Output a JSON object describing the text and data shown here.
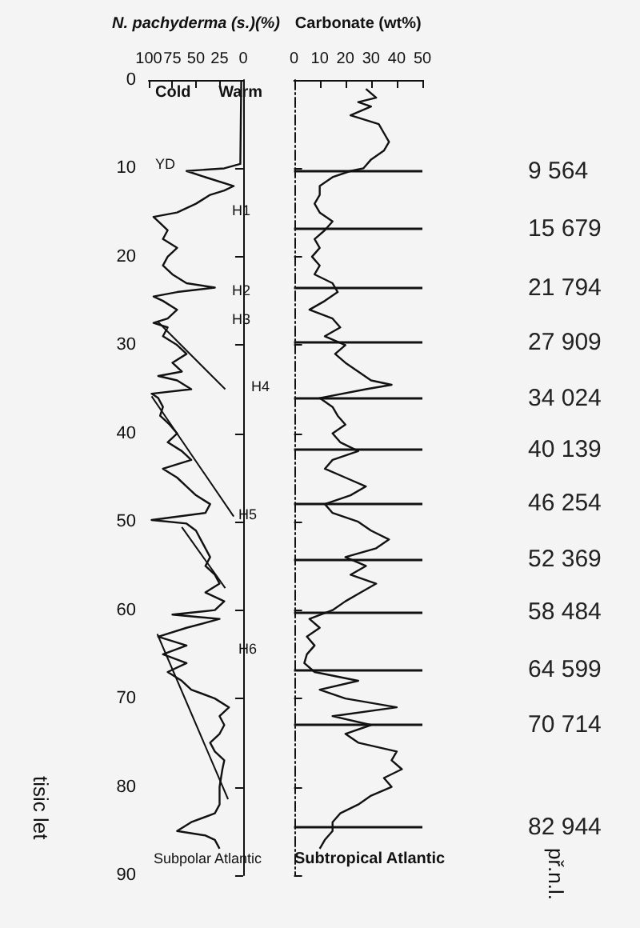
{
  "chart_data": [
    {
      "type": "line",
      "xlabel": "N. pachyderma (s.)(%)",
      "xlim": [
        100,
        0
      ],
      "xticks": [
        100,
        75,
        50,
        25,
        0
      ],
      "ylim": [
        90,
        0
      ],
      "yticks": [
        0,
        10,
        20,
        30,
        40,
        50,
        60,
        70,
        80,
        90
      ],
      "grid": false,
      "series": [
        {
          "color": "#111111",
          "x": [
            2,
            3,
            20,
            60,
            40,
            10,
            20,
            35,
            50,
            70,
            95,
            90,
            80,
            85,
            70,
            80,
            85,
            75,
            60,
            30,
            70,
            95,
            85,
            70,
            80,
            95,
            80,
            85,
            70,
            60,
            75,
            65,
            90,
            70,
            55,
            97,
            90,
            85,
            88,
            78,
            70,
            80,
            65,
            55,
            85,
            70,
            60,
            50,
            35,
            40,
            97,
            60,
            50,
            45,
            40,
            35,
            40,
            30,
            25,
            40,
            20,
            30,
            75,
            25,
            60,
            90,
            60,
            85,
            60,
            80,
            65,
            55,
            30,
            15,
            25,
            20,
            25,
            35,
            30,
            20,
            22,
            25,
            25,
            30,
            55,
            70,
            40,
            30,
            25
          ],
          "values": [
            0,
            9.5,
            10,
            10.3,
            11,
            12,
            12.5,
            13,
            14,
            15,
            15.5,
            16,
            17,
            18,
            19,
            20,
            21,
            22,
            23,
            23.5,
            24,
            24.5,
            25,
            26,
            27,
            27.5,
            28,
            29,
            30,
            31,
            32,
            33,
            33.5,
            34,
            35,
            35.5,
            36,
            37,
            38,
            39,
            40,
            41,
            42,
            43,
            44,
            45,
            46,
            47,
            48,
            49,
            49.8,
            50.2,
            51,
            52,
            53,
            54,
            55,
            56,
            57,
            58,
            59,
            60,
            60.5,
            61,
            62,
            63,
            64,
            65,
            66,
            67,
            68,
            69,
            70,
            71,
            72,
            73,
            74,
            75,
            76,
            77,
            78,
            80,
            82,
            83,
            84,
            85,
            85.5,
            86,
            87
          ]
        },
        {
          "color": "#111111",
          "x": [
            91,
            19,
            null,
            97,
            10,
            null,
            65,
            19,
            null,
            91,
            16
          ],
          "values": [
            27.3,
            35,
            null,
            35.8,
            49.4,
            null,
            50.6,
            57.5,
            null,
            62.7,
            81.4
          ]
        }
      ],
      "annotations": [
        "Cold",
        "Warm",
        "Subpolar Atlantic",
        "tisic let",
        "YD",
        "H1",
        "H2",
        "H3",
        "H4",
        "H5",
        "H6"
      ]
    },
    {
      "type": "line",
      "xlabel": "Carbonate (wt%)",
      "xlim": [
        0,
        50
      ],
      "xticks": [
        0,
        10,
        20,
        30,
        40,
        50
      ],
      "ylim": [
        90,
        0
      ],
      "yticks": [
        0,
        10,
        20,
        30,
        40,
        50,
        60,
        70,
        80,
        90
      ],
      "grid": false,
      "tick_labels": "x",
      "series": [
        {
          "color": "#111111",
          "x": [
            28,
            32,
            25,
            30,
            22,
            33,
            35,
            37,
            35,
            30,
            27,
            22,
            15,
            10,
            10,
            8,
            10,
            15,
            12,
            8,
            10,
            7,
            10,
            8,
            15,
            17,
            12,
            6,
            15,
            18,
            12,
            20,
            16,
            20,
            25,
            30,
            38,
            28,
            10,
            15,
            17,
            20,
            15,
            18,
            25,
            15,
            12,
            20,
            28,
            22,
            12,
            15,
            25,
            30,
            37,
            32,
            20,
            28,
            22,
            32,
            26,
            20,
            15,
            6,
            10,
            5,
            8,
            5,
            4,
            8,
            25,
            10,
            20,
            40,
            15,
            30,
            20,
            25,
            40,
            38,
            42,
            35,
            38,
            30,
            25,
            18,
            15,
            15,
            12,
            10
          ],
          "values": [
            1,
            2,
            2.5,
            3,
            4,
            5,
            6,
            7,
            8,
            9,
            10,
            10.3,
            11,
            12,
            13,
            14,
            15,
            16,
            17,
            18,
            19,
            20,
            21,
            22,
            23,
            24,
            25,
            26,
            27,
            28,
            29,
            30,
            31,
            32,
            33,
            34,
            34.5,
            35,
            36,
            37,
            38,
            39,
            40,
            41,
            42,
            43,
            44,
            45,
            46,
            47,
            48,
            49,
            50,
            51,
            52,
            53,
            54,
            55,
            56,
            57,
            58,
            59,
            60,
            61,
            62,
            63,
            64,
            65,
            66,
            67,
            68,
            69,
            70,
            71,
            72,
            73,
            74,
            75,
            76,
            77,
            78,
            79,
            80,
            81,
            82,
            83,
            84,
            85,
            86,
            87
          ]
        }
      ],
      "ref_lines": [
        {
          "axis": "y",
          "value": 10.3
        },
        {
          "axis": "y",
          "value": 16.8
        },
        {
          "axis": "y",
          "value": 23.5
        },
        {
          "axis": "y",
          "value": 29.7
        },
        {
          "axis": "y",
          "value": 36
        },
        {
          "axis": "y",
          "value": 41.8
        },
        {
          "axis": "y",
          "value": 47.9
        },
        {
          "axis": "y",
          "value": 54.2
        },
        {
          "axis": "y",
          "value": 60.2
        },
        {
          "axis": "y",
          "value": 66.7
        },
        {
          "axis": "y",
          "value": 73
        },
        {
          "axis": "y",
          "value": 84.6
        }
      ],
      "annotations": [
        "Subtropical Atlantic",
        "př.n.l.",
        "9 564",
        "15 679",
        "21 794",
        "27 909",
        "34 024",
        "40 139",
        "46 254",
        "52 369",
        "58 484",
        "64 599",
        "70 714",
        "82 944"
      ]
    }
  ]
}
